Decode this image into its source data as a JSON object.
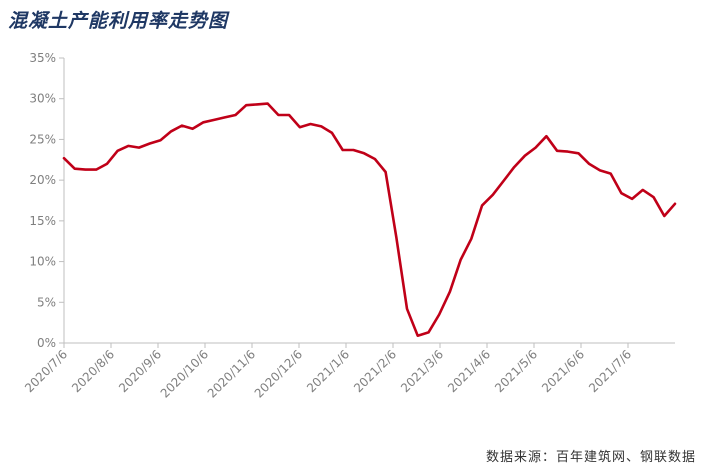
{
  "title": "混凝土产能利用率走势图",
  "source": "数据来源：百年建筑网、钢联数据",
  "colors": {
    "line": "#c00018",
    "axis": "#bfbfbf",
    "tick_text": "#7f7f7f",
    "title": "#1f3864"
  },
  "chart_data": {
    "type": "line",
    "title": "混凝土产能利用率走势图",
    "xlabel": "",
    "ylabel": "",
    "ylim": [
      0,
      35
    ],
    "y_ticks": [
      "0%",
      "5%",
      "10%",
      "15%",
      "20%",
      "25%",
      "30%",
      "35%"
    ],
    "x_tick_labels": [
      "2020/7/6",
      "2020/8/6",
      "2020/9/6",
      "2020/10/6",
      "2020/11/6",
      "2020/12/6",
      "2021/1/6",
      "2021/2/6",
      "2021/3/6",
      "2021/4/6",
      "2021/5/6",
      "2021/6/6",
      "2021/7/6"
    ],
    "grid": false,
    "legend": "none",
    "series": [
      {
        "values": [
          22.7,
          21.4,
          21.3,
          21.3,
          22.0,
          23.6,
          24.2,
          24.0,
          24.5,
          24.9,
          26.0,
          26.7,
          26.3,
          27.1,
          27.4,
          27.7,
          28.0,
          29.2,
          29.3,
          29.4,
          28.0,
          28.0,
          26.5,
          26.9,
          26.6,
          25.8,
          23.7,
          23.7,
          23.3,
          22.6,
          21.0,
          13.0,
          4.2,
          0.9,
          1.3,
          3.5,
          6.3,
          10.2,
          12.8,
          16.9,
          18.2,
          19.9,
          21.6,
          23.0,
          24.0,
          25.4,
          23.6,
          23.5,
          23.3,
          22.0,
          21.2,
          20.8,
          18.4,
          17.7,
          18.8,
          17.9,
          15.6,
          17.1
        ]
      }
    ]
  }
}
